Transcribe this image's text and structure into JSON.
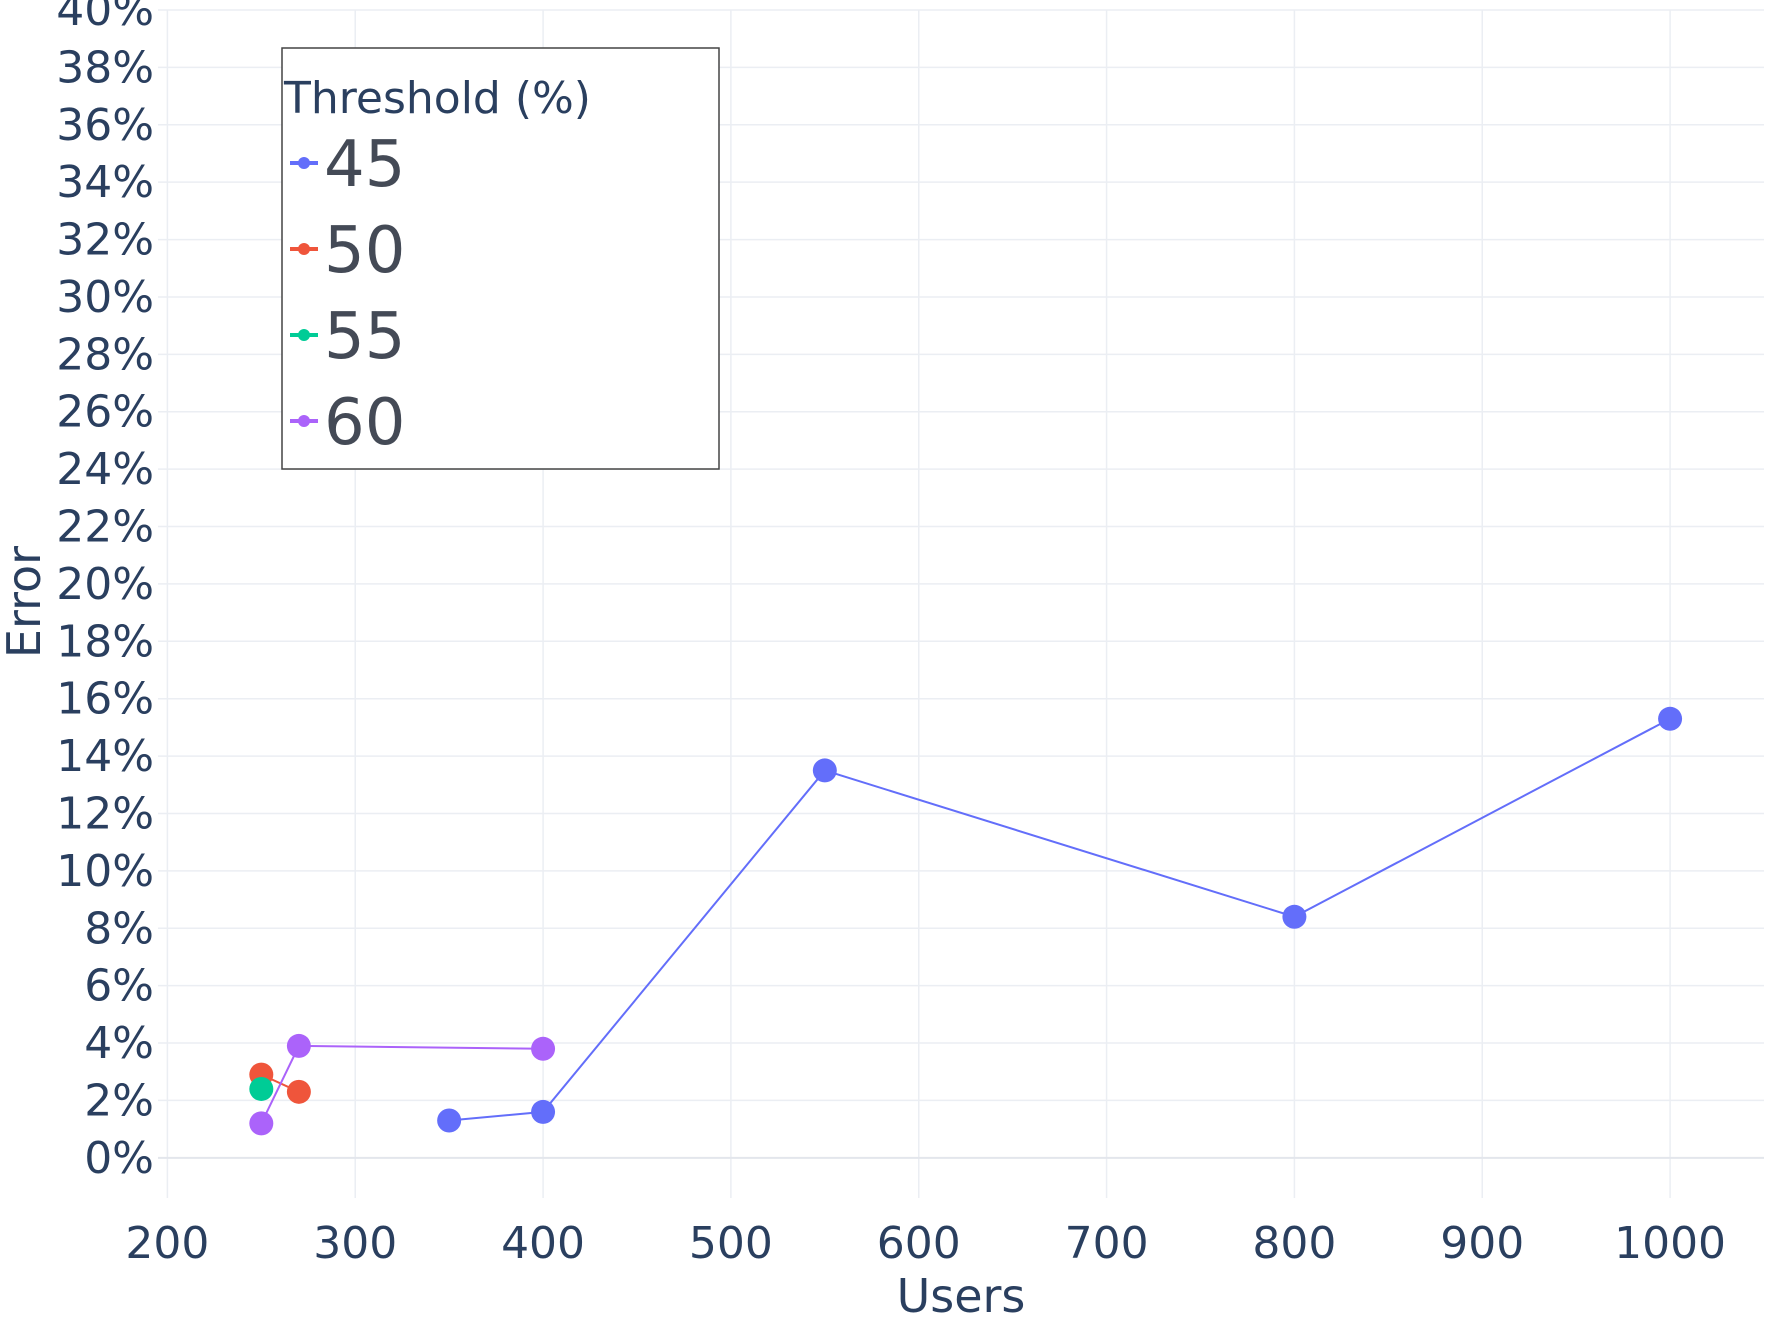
{
  "chart_data": {
    "type": "line",
    "xlabel": "Users",
    "ylabel": "Error",
    "xlim": [
      195,
      1050
    ],
    "ylim": [
      -1.4,
      40
    ],
    "x_ticks": [
      200,
      300,
      400,
      500,
      600,
      700,
      800,
      900,
      1000
    ],
    "y_ticks": [
      0,
      2,
      4,
      6,
      8,
      10,
      12,
      14,
      16,
      18,
      20,
      22,
      24,
      26,
      28,
      30,
      32,
      34,
      36,
      38,
      40
    ],
    "x_tick_labels": [
      "200",
      "300",
      "400",
      "500",
      "600",
      "700",
      "800",
      "900",
      "1000"
    ],
    "y_tick_labels": [
      "0%",
      "2%",
      "4%",
      "6%",
      "8%",
      "10%",
      "12%",
      "14%",
      "16%",
      "18%",
      "20%",
      "22%",
      "24%",
      "26%",
      "28%",
      "30%",
      "32%",
      "34%",
      "36%",
      "38%",
      "40%"
    ],
    "grid": true,
    "legend": {
      "title": "Threshold (%)",
      "placement": "top-left"
    },
    "series": [
      {
        "name": "45",
        "color": "#636efa",
        "points": [
          [
            350,
            1.3
          ],
          [
            400,
            1.6
          ],
          [
            550,
            13.5
          ],
          [
            800,
            8.4
          ],
          [
            1000,
            15.3
          ]
        ]
      },
      {
        "name": "50",
        "color": "#ef553b",
        "points": [
          [
            250,
            2.9
          ],
          [
            270,
            2.3
          ]
        ]
      },
      {
        "name": "55",
        "color": "#00cc96",
        "points": [
          [
            250,
            2.4
          ]
        ]
      },
      {
        "name": "60",
        "color": "#ab63fa",
        "points": [
          [
            250,
            1.2
          ],
          [
            270,
            3.9
          ],
          [
            400,
            3.8
          ]
        ]
      }
    ]
  }
}
